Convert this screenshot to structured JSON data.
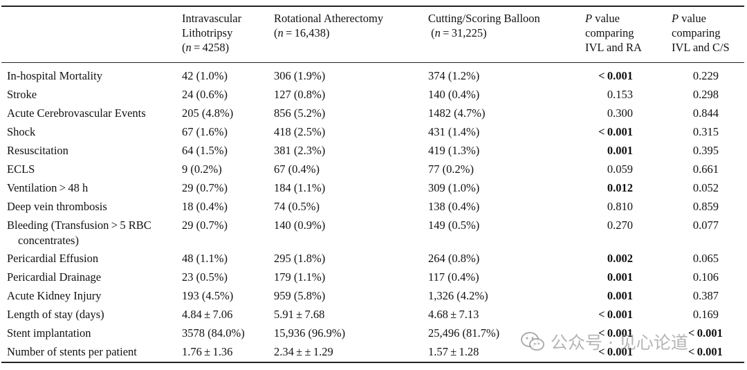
{
  "header": {
    "col1": [
      "Intravascular",
      "Lithotripsy",
      "(",
      "n",
      " = 4258)"
    ],
    "col2": [
      "Rotational Atherectomy",
      "(",
      "n",
      " = 16,438)"
    ],
    "col3": [
      "Cutting/Scoring Balloon",
      " (",
      "n",
      " = 31,225)"
    ],
    "col4": [
      "P",
      " value",
      "comparing",
      "IVL and RA"
    ],
    "col5": [
      "P",
      " value",
      "comparing",
      "IVL and C/S"
    ]
  },
  "rows": [
    {
      "label": "In-hospital Mortality",
      "ivl": "42 (1.0%)",
      "ra": "306 (1.9%)",
      "cs": "374 (1.2%)",
      "p_ra": "< 0.001",
      "p_cs": "0.229",
      "bold_ra": true
    },
    {
      "label": "Stroke",
      "ivl": "24 (0.6%)",
      "ra": "127 (0.8%)",
      "cs": "140 (0.4%)",
      "p_ra": "0.153",
      "p_cs": "0.298"
    },
    {
      "label": "Acute Cerebrovascular Events",
      "ivl": "205 (4.8%)",
      "ra": "856 (5.2%)",
      "cs": "1482 (4.7%)",
      "p_ra": "0.300",
      "p_cs": "0.844"
    },
    {
      "label": "Shock",
      "ivl": "67 (1.6%)",
      "ra": "418 (2.5%)",
      "cs": "431 (1.4%)",
      "p_ra": "< 0.001",
      "p_cs": "0.315",
      "bold_ra": true
    },
    {
      "label": "Resuscitation",
      "ivl": "64 (1.5%)",
      "ra": "381 (2.3%)",
      "cs": "419 (1.3%)",
      "p_ra": "0.001",
      "p_cs": "0.395",
      "bold_ra": true
    },
    {
      "label": "ECLS",
      "ivl": "9 (0.2%)",
      "ra": "67 (0.4%)",
      "cs": "77 (0.2%)",
      "p_ra": "0.059",
      "p_cs": "0.661"
    },
    {
      "label": "Ventilation > 48 h",
      "ivl": "29 (0.7%)",
      "ra": "184 (1.1%)",
      "cs": "309 (1.0%)",
      "p_ra": "0.012",
      "p_cs": "0.052",
      "bold_ra": true
    },
    {
      "label": "Deep vein thrombosis",
      "ivl": "18 (0.4%)",
      "ra": "74 (0.5%)",
      "cs": "138 (0.4%)",
      "p_ra": "0.810",
      "p_cs": "0.859"
    },
    {
      "label": "Bleeding (Transfusion > 5 RBC",
      "label2": "concentrates)",
      "ivl": "29 (0.7%)",
      "ra": "140 (0.9%)",
      "cs": "149 (0.5%)",
      "p_ra": "0.270",
      "p_cs": "0.077"
    },
    {
      "label": "Pericardial Effusion",
      "ivl": "48 (1.1%)",
      "ra": "295 (1.8%)",
      "cs": "264 (0.8%)",
      "p_ra": "0.002",
      "p_cs": "0.065",
      "bold_ra": true
    },
    {
      "label": "Pericardial Drainage",
      "ivl": "23 (0.5%)",
      "ra": "179 (1.1%)",
      "cs": "117 (0.4%)",
      "p_ra": "0.001",
      "p_cs": "0.106",
      "bold_ra": true
    },
    {
      "label": "Acute Kidney Injury",
      "ivl": "193 (4.5%)",
      "ra": "959 (5.8%)",
      "cs": "1,326 (4.2%)",
      "p_ra": "0.001",
      "p_cs": "0.387",
      "bold_ra": true
    },
    {
      "label": "Length of stay (days)",
      "ivl": "4.84 ± 7.06",
      "ra": "5.91 ± 7.68",
      "cs": "4.68 ± 7.13",
      "p_ra": "< 0.001",
      "p_cs": "0.169",
      "bold_ra": true
    },
    {
      "label": "Stent implantation",
      "ivl": "3578 (84.0%)",
      "ra": "15,936 (96.9%)",
      "cs": "25,496 (81.7%)",
      "p_ra": "< 0.001",
      "p_cs": "< 0.001",
      "bold_ra": true,
      "bold_cs": true
    },
    {
      "label": "Number of stents per patient",
      "ivl": "1.76 ± 1.36",
      "ra": "2.34 ± ± 1.29",
      "cs": "1.57 ± 1.28",
      "p_ra": "< 0.001",
      "p_cs": "< 0.001",
      "bold_ra": true,
      "bold_cs": true
    }
  ],
  "watermark": {
    "text": "公众号 · 见心论道",
    "icon": "wechat-logo-icon"
  }
}
